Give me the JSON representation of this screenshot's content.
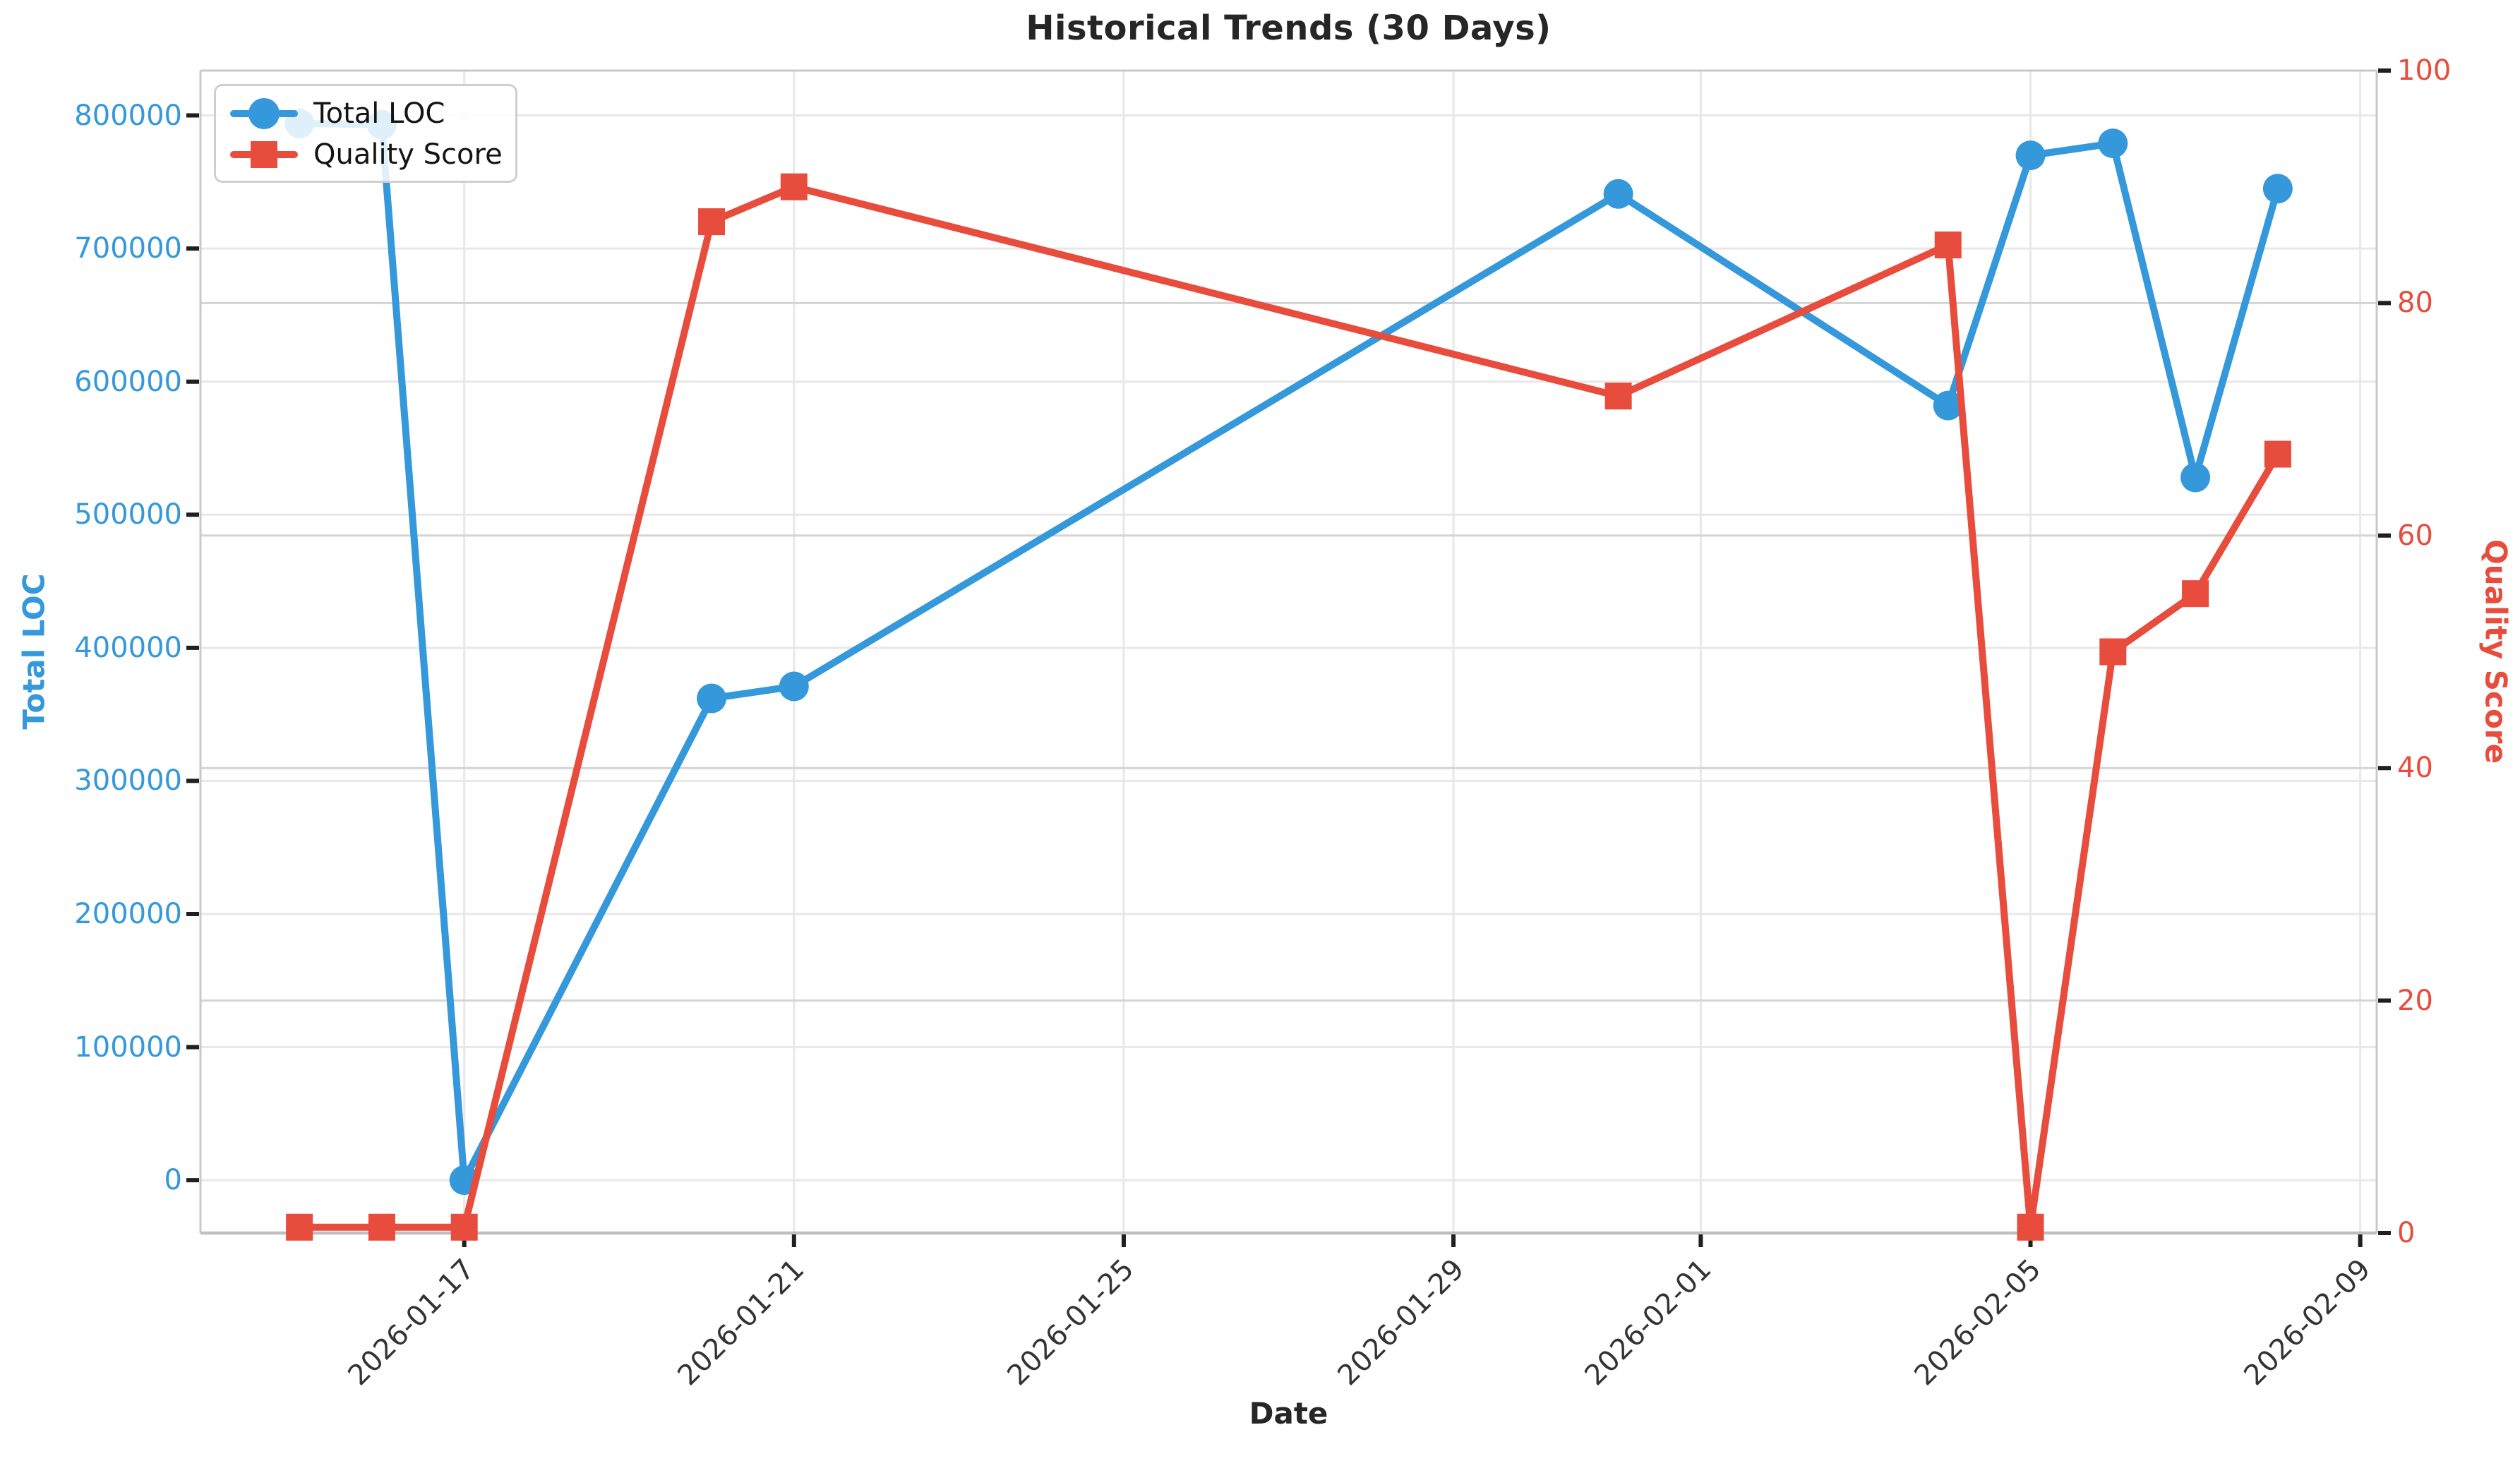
{
  "chart_data": {
    "type": "line",
    "title": "Historical Trends (30 Days)",
    "xlabel": "Date",
    "ylabel_left": "Total LOC",
    "ylabel_right": "Quality Score",
    "x_dates": [
      "2026-01-15",
      "2026-01-16",
      "2026-01-17",
      "2026-01-20",
      "2026-01-21",
      "2026-01-31",
      "2026-02-04",
      "2026-02-05",
      "2026-02-06",
      "2026-02-07",
      "2026-02-08"
    ],
    "series": [
      {
        "name": "Total LOC",
        "axis": "left",
        "marker": "circle",
        "color": "#3498db",
        "values": [
          794000,
          793000,
          0,
          362000,
          371000,
          741000,
          582000,
          770000,
          779000,
          528000,
          745000
        ]
      },
      {
        "name": "Quality Score",
        "axis": "right",
        "marker": "square",
        "color": "#e74c3c",
        "values": [
          0.5,
          0.5,
          0.5,
          87,
          90,
          72,
          85,
          0.5,
          50,
          55,
          67
        ]
      }
    ],
    "x_tick_labels": [
      "2026-01-17",
      "2026-01-21",
      "2026-01-25",
      "2026-01-29",
      "2026-02-01",
      "2026-02-05",
      "2026-02-09"
    ],
    "y_ticks_left": [
      0,
      100000,
      200000,
      300000,
      400000,
      500000,
      600000,
      700000,
      800000
    ],
    "y_ticks_right": [
      0,
      20,
      40,
      60,
      80,
      100
    ],
    "ylim_left": [
      -39700,
      833700
    ],
    "ylim_right": [
      0,
      100
    ],
    "grid": true,
    "legend_position": "upper-left"
  }
}
